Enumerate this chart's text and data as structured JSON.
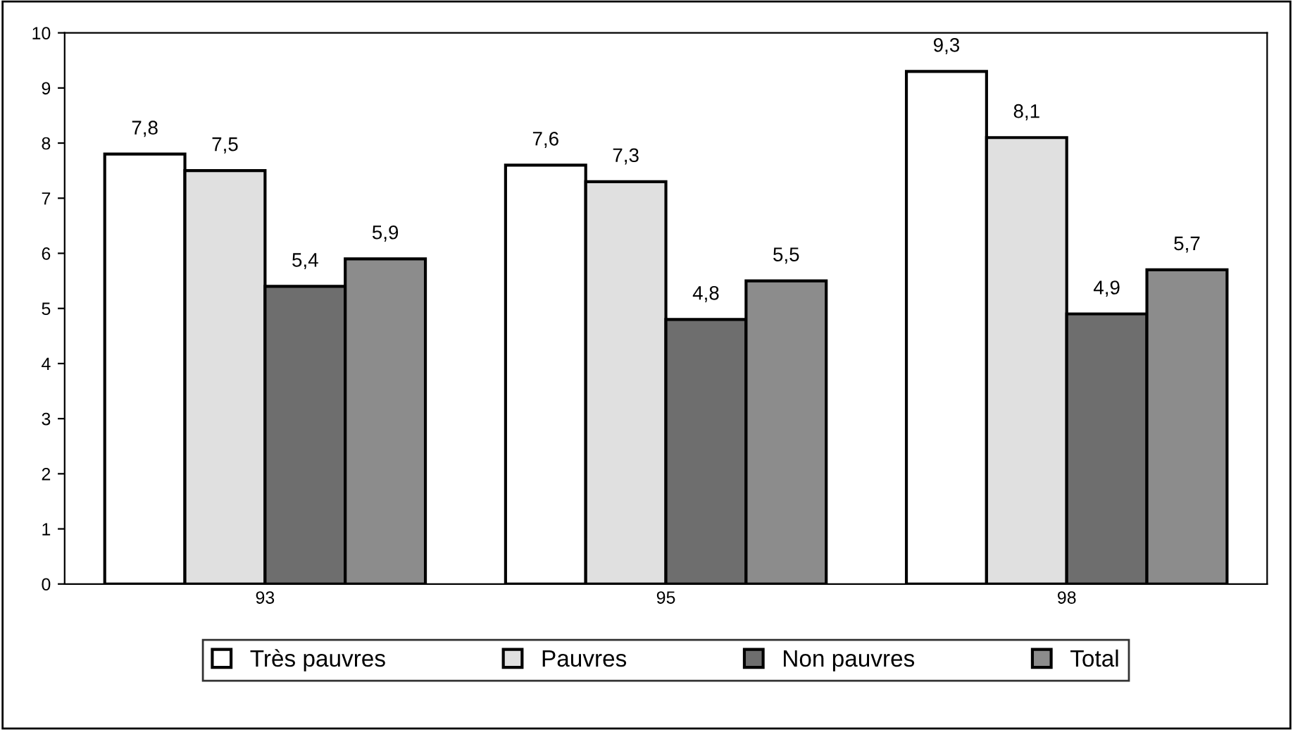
{
  "chart_data": {
    "type": "bar",
    "categories": [
      "93",
      "95",
      "98"
    ],
    "series": [
      {
        "name": "Très pauvres",
        "color": "#ffffff",
        "values": [
          7.8,
          7.6,
          9.3
        ],
        "value_labels": [
          "7,8",
          "7,6",
          "9,3"
        ]
      },
      {
        "name": "Pauvres",
        "color": "#e0e0e0",
        "values": [
          7.5,
          7.3,
          8.1
        ],
        "value_labels": [
          "7,5",
          "7,3",
          "8,1"
        ]
      },
      {
        "name": "Non pauvres",
        "color": "#6e6e6e",
        "values": [
          5.4,
          4.8,
          4.9
        ],
        "value_labels": [
          "5,4",
          "4,8",
          "4,9"
        ]
      },
      {
        "name": "Total",
        "color": "#8c8c8c",
        "values": [
          5.9,
          5.5,
          5.7
        ],
        "value_labels": [
          "5,9",
          "5,5",
          "5,7"
        ]
      }
    ],
    "ylim": [
      0,
      10
    ],
    "yticks": [
      0,
      1,
      2,
      3,
      4,
      5,
      6,
      7,
      8,
      9,
      10
    ],
    "grid": false,
    "legend": "bottom"
  }
}
